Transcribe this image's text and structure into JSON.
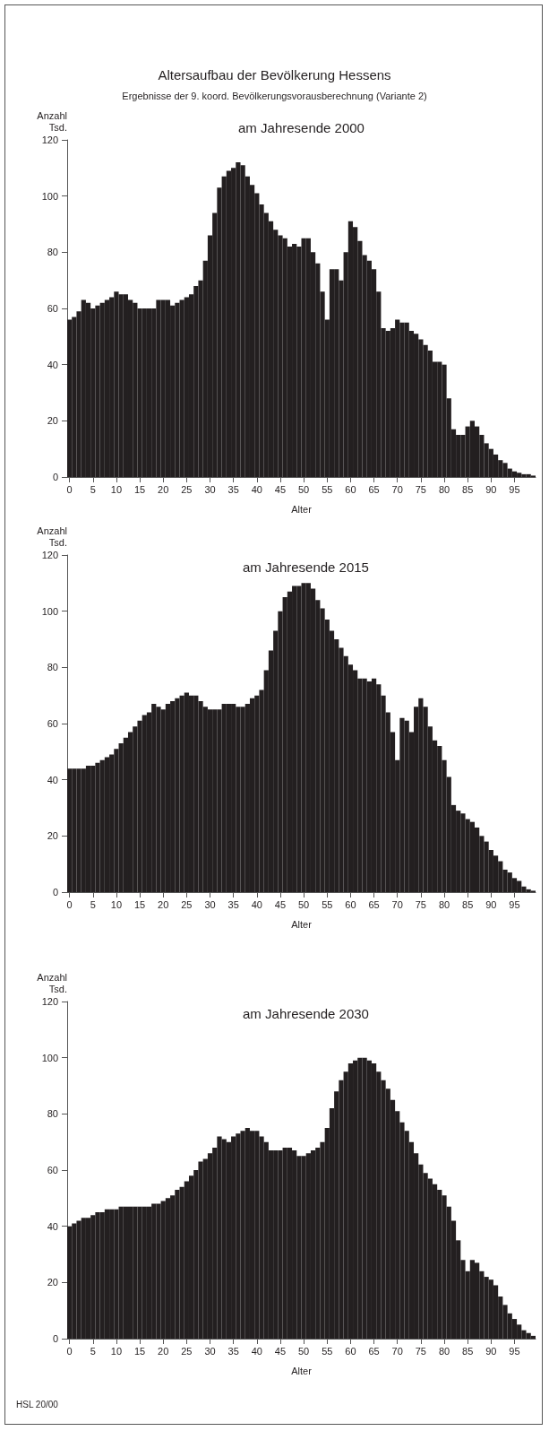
{
  "chart_data": [
    {
      "type": "bar",
      "title": "Altersaufbau der Bevölkerung Hessens",
      "subtitle": "Ergebnisse der 9. koord. Bevölkerungsvorausberechnung (Variante 2)",
      "annotations": [
        "am Jahresende 2000"
      ],
      "xlabel": "Alter",
      "ylabel": "Anzahl\nTsd.",
      "color": "#231f20",
      "ylim": [
        0,
        120
      ],
      "yticks": [
        0,
        20,
        40,
        60,
        80,
        100,
        120
      ],
      "categories": [
        "0",
        null,
        null,
        null,
        null,
        "5",
        null,
        null,
        null,
        null,
        "10",
        null,
        null,
        null,
        null,
        "15",
        null,
        null,
        null,
        null,
        "20",
        null,
        null,
        null,
        null,
        "25",
        null,
        null,
        null,
        null,
        "30",
        null,
        null,
        null,
        null,
        "35",
        null,
        null,
        null,
        null,
        "40",
        null,
        null,
        null,
        null,
        "45",
        null,
        null,
        null,
        null,
        "50",
        null,
        null,
        null,
        null,
        "55",
        null,
        null,
        null,
        null,
        "60",
        null,
        null,
        null,
        null,
        "65",
        null,
        null,
        null,
        null,
        "70",
        null,
        null,
        null,
        null,
        "75",
        null,
        null,
        null,
        null,
        "80",
        null,
        null,
        null,
        null,
        "85",
        null,
        null,
        null,
        null,
        "90",
        null,
        null,
        null,
        null,
        "95",
        null,
        null,
        null,
        null
      ],
      "values": [
        56,
        57,
        59,
        63,
        62,
        60,
        61,
        62,
        63,
        64,
        66,
        65,
        65,
        63,
        62,
        60,
        60,
        60,
        60,
        63,
        63,
        63,
        61,
        62,
        63,
        64,
        65,
        68,
        70,
        77,
        86,
        94,
        103,
        107,
        109,
        110,
        112,
        111,
        107,
        104,
        101,
        97,
        94,
        91,
        88,
        86,
        85,
        82,
        83,
        82,
        85,
        85,
        80,
        76,
        66,
        56,
        74,
        74,
        70,
        80,
        91,
        89,
        84,
        79,
        77,
        74,
        66,
        53,
        52,
        53,
        56,
        55,
        55,
        52,
        51,
        49,
        47,
        45,
        41,
        41,
        40,
        28,
        17,
        15,
        15,
        18,
        20,
        18,
        15,
        12,
        10,
        8,
        6,
        5,
        3,
        2,
        1.5,
        1,
        1,
        0.5
      ]
    },
    {
      "type": "bar",
      "title": "am Jahresende 2015",
      "xlabel": "Alter",
      "ylabel": "Anzahl\nTsd.",
      "color": "#231f20",
      "ylim": [
        0,
        120
      ],
      "yticks": [
        0,
        20,
        40,
        60,
        80,
        100,
        120
      ],
      "categories": [
        "0",
        null,
        null,
        null,
        null,
        "5",
        null,
        null,
        null,
        null,
        "10",
        null,
        null,
        null,
        null,
        "15",
        null,
        null,
        null,
        null,
        "20",
        null,
        null,
        null,
        null,
        "25",
        null,
        null,
        null,
        null,
        "30",
        null,
        null,
        null,
        null,
        "35",
        null,
        null,
        null,
        null,
        "40",
        null,
        null,
        null,
        null,
        "45",
        null,
        null,
        null,
        null,
        "50",
        null,
        null,
        null,
        null,
        "55",
        null,
        null,
        null,
        null,
        "60",
        null,
        null,
        null,
        null,
        "65",
        null,
        null,
        null,
        null,
        "70",
        null,
        null,
        null,
        null,
        "75",
        null,
        null,
        null,
        null,
        "80",
        null,
        null,
        null,
        null,
        "85",
        null,
        null,
        null,
        null,
        "90",
        null,
        null,
        null,
        null,
        "95",
        null,
        null,
        null,
        null
      ],
      "values": [
        44,
        44,
        44,
        44,
        45,
        45,
        46,
        47,
        48,
        49,
        51,
        53,
        55,
        57,
        59,
        61,
        63,
        64,
        67,
        66,
        65,
        67,
        68,
        69,
        70,
        71,
        70,
        70,
        68,
        66,
        65,
        65,
        65,
        67,
        67,
        67,
        66,
        66,
        67,
        69,
        70,
        72,
        79,
        86,
        93,
        100,
        105,
        107,
        109,
        109,
        110,
        110,
        108,
        104,
        101,
        97,
        93,
        90,
        87,
        84,
        81,
        79,
        76,
        76,
        75,
        76,
        74,
        70,
        64,
        57,
        47,
        62,
        61,
        57,
        66,
        69,
        66,
        59,
        54,
        52,
        47,
        41,
        31,
        29,
        28,
        26,
        25,
        23,
        20,
        18,
        15,
        13,
        11,
        8,
        7,
        5,
        4,
        2,
        1,
        0.5
      ]
    },
    {
      "type": "bar",
      "title": "am Jahresende 2030",
      "xlabel": "Alter",
      "ylabel": "Anzahl\nTsd.",
      "color": "#231f20",
      "ylim": [
        0,
        120
      ],
      "yticks": [
        0,
        20,
        40,
        60,
        80,
        100,
        120
      ],
      "annotations": [
        "HSL 20/00"
      ],
      "categories": [
        "0",
        null,
        null,
        null,
        null,
        "5",
        null,
        null,
        null,
        null,
        "10",
        null,
        null,
        null,
        null,
        "15",
        null,
        null,
        null,
        null,
        "20",
        null,
        null,
        null,
        null,
        "25",
        null,
        null,
        null,
        null,
        "30",
        null,
        null,
        null,
        null,
        "35",
        null,
        null,
        null,
        null,
        "40",
        null,
        null,
        null,
        null,
        "45",
        null,
        null,
        null,
        null,
        "50",
        null,
        null,
        null,
        null,
        "55",
        null,
        null,
        null,
        null,
        "60",
        null,
        null,
        null,
        null,
        "65",
        null,
        null,
        null,
        null,
        "70",
        null,
        null,
        null,
        null,
        "75",
        null,
        null,
        null,
        null,
        "80",
        null,
        null,
        null,
        null,
        "85",
        null,
        null,
        null,
        null,
        "90",
        null,
        null,
        null,
        null,
        "95",
        null,
        null,
        null,
        null
      ],
      "values": [
        40,
        41,
        42,
        43,
        43,
        44,
        45,
        45,
        46,
        46,
        46,
        47,
        47,
        47,
        47,
        47,
        47,
        47,
        48,
        48,
        49,
        50,
        51,
        53,
        54,
        56,
        58,
        60,
        63,
        64,
        66,
        68,
        72,
        71,
        70,
        72,
        73,
        74,
        75,
        74,
        74,
        72,
        70,
        67,
        67,
        67,
        68,
        68,
        67,
        65,
        65,
        66,
        67,
        68,
        70,
        75,
        82,
        88,
        92,
        95,
        98,
        99,
        100,
        100,
        99,
        98,
        95,
        92,
        89,
        85,
        81,
        77,
        74,
        70,
        66,
        62,
        59,
        57,
        55,
        53,
        51,
        47,
        42,
        35,
        28,
        24,
        28,
        27,
        24,
        22,
        21,
        19,
        15,
        12,
        9,
        7,
        5,
        3,
        2,
        1
      ]
    }
  ]
}
